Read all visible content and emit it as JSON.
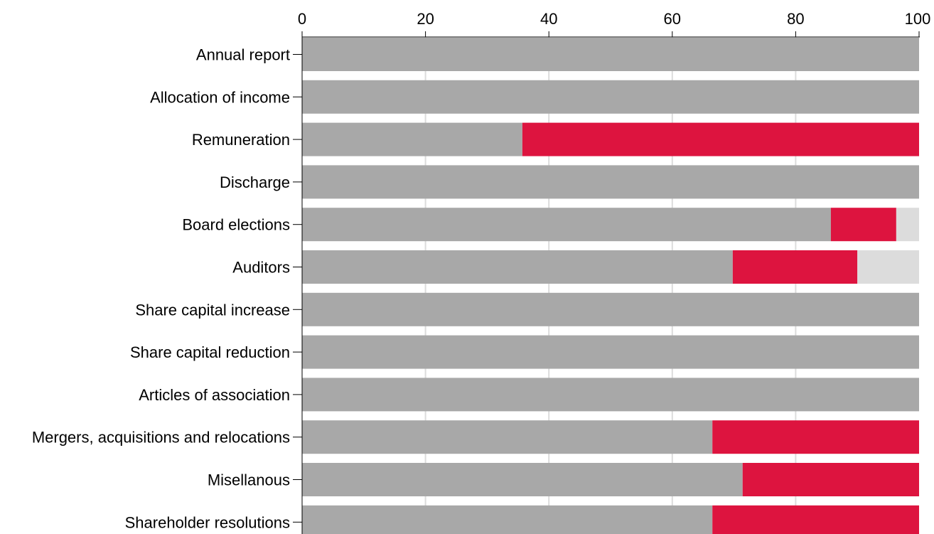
{
  "chart_data": {
    "type": "bar",
    "orientation": "horizontal",
    "stacked": true,
    "categories": [
      "Annual report",
      "Allocation of income",
      "Remuneration",
      "Discharge",
      "Board elections",
      "Auditors",
      "Share capital increase",
      "Share capital reduction",
      "Articles of association",
      "Mergers, acquisitions and relocations",
      "Misellanous",
      "Shareholder resolutions"
    ],
    "series": [
      {
        "color": "#a8a8a8",
        "values": [
          100,
          100,
          35.7,
          100,
          85.7,
          69.8,
          100,
          100,
          100,
          66.5,
          71.4,
          66.5
        ]
      },
      {
        "color": "#dd143f",
        "values": [
          0,
          0,
          64.3,
          0,
          10.6,
          20.2,
          0,
          0,
          0,
          33.5,
          28.6,
          33.5
        ]
      },
      {
        "color": "#dcdcdc",
        "values": [
          0,
          0,
          0,
          0,
          3.7,
          10.0,
          0,
          0,
          0,
          0,
          0,
          0
        ]
      }
    ],
    "xlim": [
      0,
      100
    ],
    "xticks": [
      "0",
      "20",
      "40",
      "60",
      "80",
      "100"
    ],
    "xaxis_position": "top",
    "grid": true,
    "title": "",
    "xlabel": "",
    "ylabel": ""
  }
}
